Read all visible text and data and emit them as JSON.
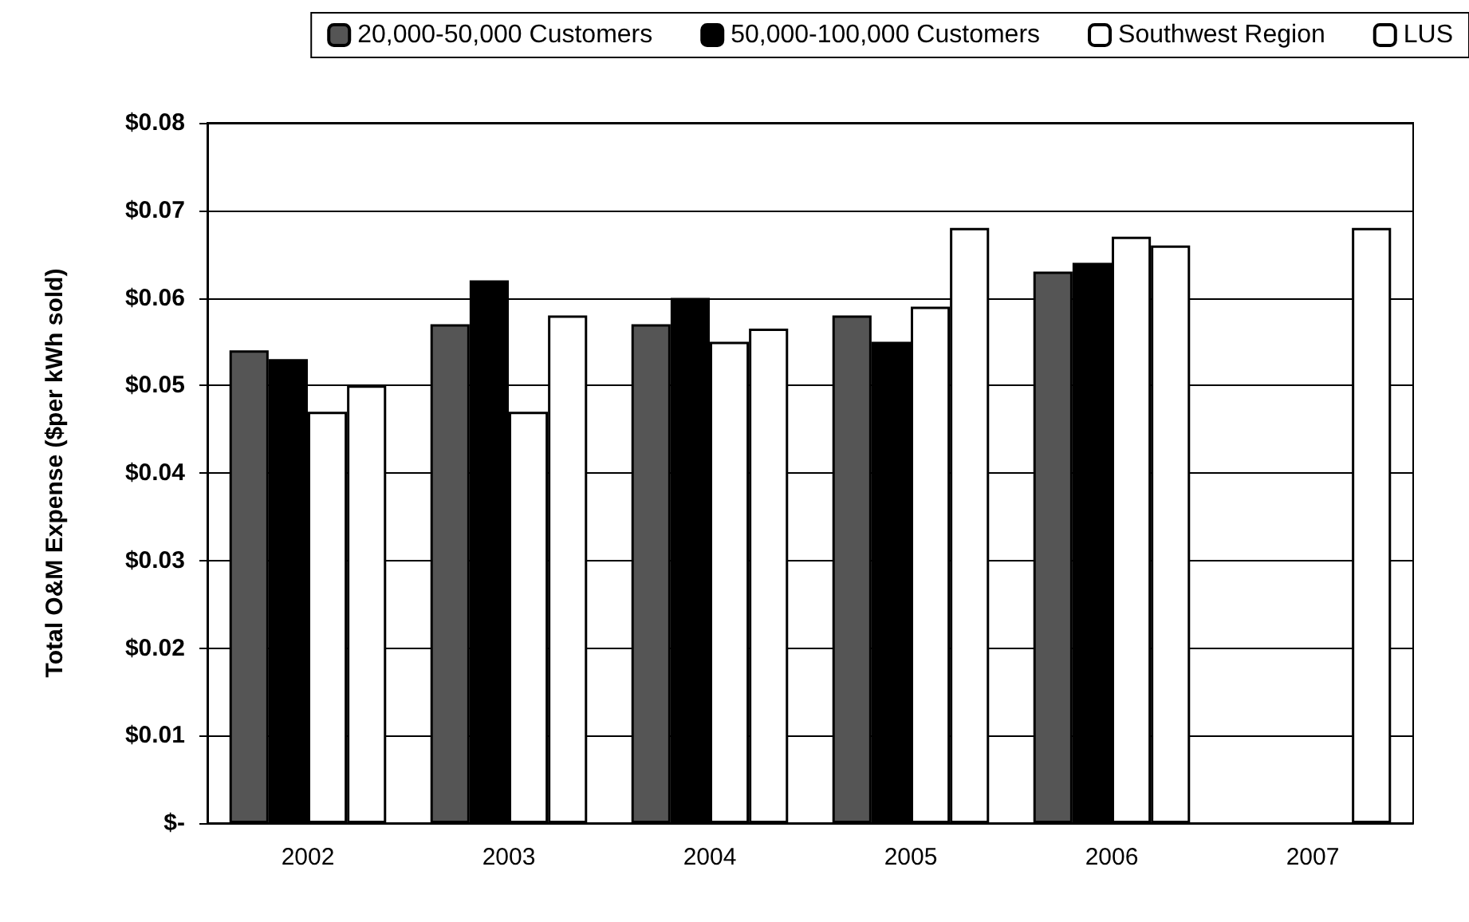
{
  "chart_data": {
    "type": "bar",
    "ylabel": "Total O&M Expense ($per kWh sold)",
    "categories": [
      "2002",
      "2003",
      "2004",
      "2005",
      "2006",
      "2007"
    ],
    "series": [
      {
        "name": "20,000-50,000 Customers",
        "color": "#555555",
        "values": [
          0.054,
          0.057,
          0.057,
          0.058,
          0.063,
          null
        ]
      },
      {
        "name": "50,000-100,000 Customers",
        "color": "#000000",
        "values": [
          0.053,
          0.062,
          0.06,
          0.055,
          0.064,
          null
        ]
      },
      {
        "name": "Southwest Region",
        "color": "#ffffff",
        "values": [
          0.047,
          0.047,
          0.055,
          0.059,
          0.067,
          null
        ]
      },
      {
        "name": "LUS",
        "color": "#ffffff",
        "values": [
          0.05,
          0.058,
          0.0565,
          0.068,
          0.066,
          0.068
        ]
      }
    ],
    "ylim": [
      0,
      0.08
    ],
    "yticks": [
      {
        "value": 0,
        "label": "$-"
      },
      {
        "value": 0.01,
        "label": "$0.01"
      },
      {
        "value": 0.02,
        "label": "$0.02"
      },
      {
        "value": 0.03,
        "label": "$0.03"
      },
      {
        "value": 0.04,
        "label": "$0.04"
      },
      {
        "value": 0.05,
        "label": "$0.05"
      },
      {
        "value": 0.06,
        "label": "$0.06"
      },
      {
        "value": 0.07,
        "label": "$0.07"
      },
      {
        "value": 0.08,
        "label": "$0.08"
      }
    ],
    "grid": "y",
    "legend": "top right"
  }
}
